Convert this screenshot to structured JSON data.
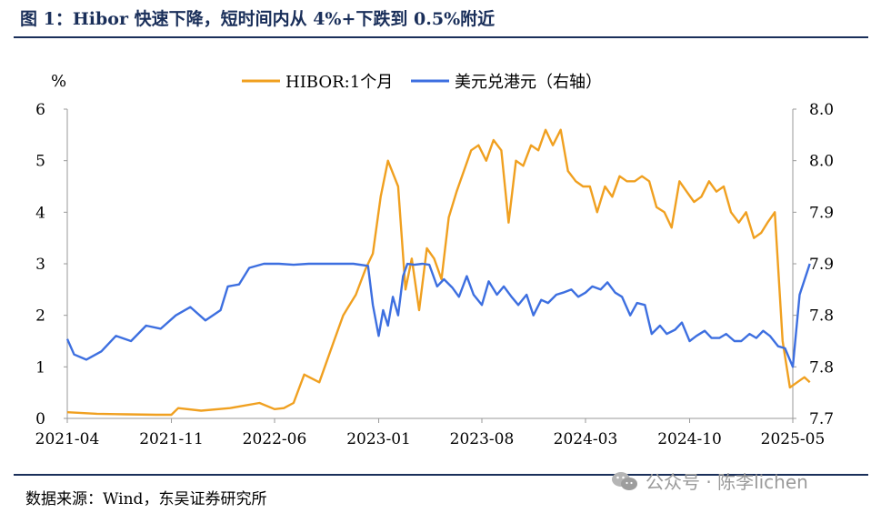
{
  "header": {
    "title": "图 1：Hibor 快速下降，短时间内从 4%+下跌到 0.5%附近"
  },
  "footer": {
    "source": "数据来源：Wind，东吴证券研究所",
    "watermark": "公众号 · 陈李lichen"
  },
  "colors": {
    "hibor": "#f0a020",
    "usdhkd": "#3d6fe0",
    "title": "#1a2f5a"
  },
  "chart_data": {
    "type": "line",
    "left_axis_unit": "%",
    "ylim": [
      0,
      6
    ],
    "y_ticks": [
      0,
      1,
      2,
      3,
      4,
      5,
      6
    ],
    "y2lim": [
      7.7,
      8.0
    ],
    "y2_ticks": [
      7.7,
      7.75,
      7.8,
      7.85,
      7.9,
      7.95,
      8.0
    ],
    "y2_tick_labels": [
      "7.7",
      "7.8",
      "7.8",
      "7.9",
      "7.9",
      "8.0",
      "8.0"
    ],
    "xlim": [
      "2021-04",
      "2025-05"
    ],
    "x_ticks": [
      "2021-04",
      "2021-11",
      "2022-06",
      "2023-01",
      "2023-08",
      "2024-03",
      "2024-10",
      "2025-05"
    ],
    "grid": false,
    "legend_position": "top-center",
    "series": [
      {
        "name": "HIBOR:1个月",
        "axis": "left",
        "x": [
          "2021-04-01",
          "2021-06-01",
          "2021-08-01",
          "2021-10-01",
          "2021-11-01",
          "2021-11-15",
          "2022-01-01",
          "2022-03-01",
          "2022-05-01",
          "2022-06-01",
          "2022-06-20",
          "2022-07-10",
          "2022-08-01",
          "2022-09-01",
          "2022-10-01",
          "2022-10-20",
          "2022-11-15",
          "2022-12-05",
          "2022-12-20",
          "2023-01-05",
          "2023-01-20",
          "2023-02-10",
          "2023-02-25",
          "2023-03-10",
          "2023-03-25",
          "2023-04-10",
          "2023-04-25",
          "2023-05-10",
          "2023-05-25",
          "2023-06-10",
          "2023-06-25",
          "2023-07-10",
          "2023-07-25",
          "2023-08-10",
          "2023-08-25",
          "2023-09-10",
          "2023-09-25",
          "2023-10-10",
          "2023-10-25",
          "2023-11-10",
          "2023-11-25",
          "2023-12-10",
          "2023-12-25",
          "2024-01-10",
          "2024-01-25",
          "2024-02-10",
          "2024-02-25",
          "2024-03-10",
          "2024-03-25",
          "2024-04-10",
          "2024-04-25",
          "2024-05-10",
          "2024-05-25",
          "2024-06-10",
          "2024-06-25",
          "2024-07-10",
          "2024-07-25",
          "2024-08-10",
          "2024-08-25",
          "2024-09-10",
          "2024-09-25",
          "2024-10-10",
          "2024-10-25",
          "2024-11-10",
          "2024-11-25",
          "2024-12-10",
          "2024-12-25",
          "2025-01-10",
          "2025-01-25",
          "2025-02-10",
          "2025-02-25",
          "2025-03-10",
          "2025-03-25",
          "2025-04-10",
          "2025-04-25",
          "2025-05-10",
          "2025-05-25",
          "2025-06-05"
        ],
        "values": [
          0.12,
          0.09,
          0.08,
          0.07,
          0.07,
          0.2,
          0.15,
          0.2,
          0.3,
          0.18,
          0.2,
          0.3,
          0.85,
          0.7,
          1.5,
          2.0,
          2.4,
          2.9,
          3.2,
          4.3,
          5.0,
          4.5,
          2.5,
          3.1,
          2.1,
          3.3,
          3.1,
          2.7,
          3.9,
          4.4,
          4.8,
          5.2,
          5.3,
          5.0,
          5.4,
          5.2,
          3.8,
          5.0,
          4.9,
          5.3,
          5.2,
          5.6,
          5.3,
          5.6,
          4.8,
          4.6,
          4.5,
          4.5,
          4.0,
          4.5,
          4.3,
          4.7,
          4.6,
          4.6,
          4.7,
          4.6,
          4.1,
          4.0,
          3.7,
          4.6,
          4.4,
          4.2,
          4.3,
          4.6,
          4.4,
          4.5,
          4.0,
          3.8,
          4.0,
          3.5,
          3.6,
          3.8,
          4.0,
          1.5,
          0.6,
          0.7,
          0.8,
          0.7
        ]
      },
      {
        "name": "美元兑港元（右轴）",
        "axis": "right",
        "x": [
          "2021-04-01",
          "2021-04-15",
          "2021-05-10",
          "2021-06-10",
          "2021-07-10",
          "2021-08-10",
          "2021-09-10",
          "2021-10-10",
          "2021-11-10",
          "2021-12-10",
          "2022-01-10",
          "2022-02-10",
          "2022-02-25",
          "2022-03-20",
          "2022-04-10",
          "2022-05-10",
          "2022-06-10",
          "2022-07-10",
          "2022-08-10",
          "2022-09-10",
          "2022-10-10",
          "2022-11-10",
          "2022-12-10",
          "2022-12-20",
          "2023-01-01",
          "2023-01-10",
          "2023-01-20",
          "2023-01-30",
          "2023-02-10",
          "2023-02-20",
          "2023-03-01",
          "2023-03-15",
          "2023-04-01",
          "2023-04-15",
          "2023-05-01",
          "2023-05-15",
          "2023-06-01",
          "2023-06-15",
          "2023-07-01",
          "2023-07-15",
          "2023-08-01",
          "2023-08-15",
          "2023-09-01",
          "2023-09-15",
          "2023-10-01",
          "2023-10-15",
          "2023-11-01",
          "2023-11-15",
          "2023-12-01",
          "2023-12-15",
          "2024-01-01",
          "2024-01-15",
          "2024-02-01",
          "2024-02-15",
          "2024-03-01",
          "2024-03-15",
          "2024-04-01",
          "2024-04-15",
          "2024-05-01",
          "2024-05-15",
          "2024-06-01",
          "2024-06-15",
          "2024-07-01",
          "2024-07-15",
          "2024-08-01",
          "2024-08-15",
          "2024-09-01",
          "2024-09-15",
          "2024-10-01",
          "2024-10-15",
          "2024-11-01",
          "2024-11-15",
          "2024-12-01",
          "2024-12-15",
          "2025-01-01",
          "2025-01-15",
          "2025-02-01",
          "2025-02-15",
          "2025-03-01",
          "2025-03-15",
          "2025-04-01",
          "2025-04-15",
          "2025-05-01",
          "2025-05-15",
          "2025-06-05"
        ],
        "values": [
          7.777,
          7.762,
          7.757,
          7.765,
          7.78,
          7.775,
          7.79,
          7.787,
          7.8,
          7.808,
          7.795,
          7.805,
          7.828,
          7.83,
          7.846,
          7.85,
          7.85,
          7.849,
          7.85,
          7.85,
          7.85,
          7.85,
          7.848,
          7.81,
          7.78,
          7.805,
          7.79,
          7.818,
          7.8,
          7.838,
          7.85,
          7.849,
          7.85,
          7.849,
          7.828,
          7.835,
          7.827,
          7.818,
          7.838,
          7.82,
          7.81,
          7.833,
          7.82,
          7.828,
          7.818,
          7.81,
          7.82,
          7.8,
          7.815,
          7.812,
          7.82,
          7.822,
          7.825,
          7.818,
          7.822,
          7.828,
          7.825,
          7.832,
          7.822,
          7.818,
          7.8,
          7.812,
          7.81,
          7.782,
          7.79,
          7.782,
          7.786,
          7.793,
          7.775,
          7.78,
          7.785,
          7.778,
          7.778,
          7.782,
          7.775,
          7.775,
          7.782,
          7.778,
          7.785,
          7.78,
          7.77,
          7.768,
          7.75,
          7.82,
          7.85
        ]
      }
    ]
  }
}
